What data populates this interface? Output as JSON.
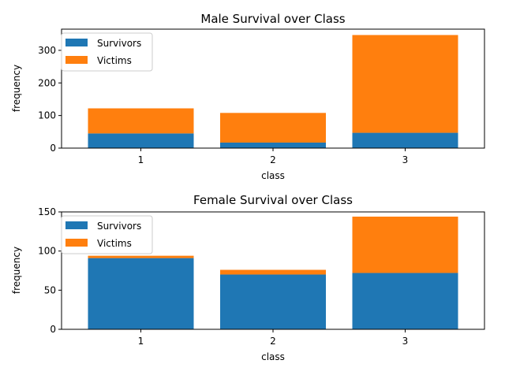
{
  "colors": {
    "survivors": "#1f77b4",
    "victims": "#ff7f0e"
  },
  "chart_data": [
    {
      "type": "bar",
      "stacked": true,
      "title": "Male Survival over Class",
      "xlabel": "class",
      "ylabel": "frequency",
      "categories": [
        "1",
        "2",
        "3"
      ],
      "ylim": [
        0,
        365
      ],
      "yticks": [
        0,
        100,
        200,
        300
      ],
      "legend": "top-left",
      "series": [
        {
          "name": "Survivors",
          "values": [
            45,
            17,
            47
          ]
        },
        {
          "name": "Victims",
          "values": [
            77,
            91,
            300
          ]
        }
      ]
    },
    {
      "type": "bar",
      "stacked": true,
      "title": "Female Survival over Class",
      "xlabel": "class",
      "ylabel": "frequency",
      "categories": [
        "1",
        "2",
        "3"
      ],
      "ylim": [
        0,
        150
      ],
      "yticks": [
        0,
        50,
        100,
        150
      ],
      "legend": "top-left",
      "series": [
        {
          "name": "Survivors",
          "values": [
            91,
            70,
            72
          ]
        },
        {
          "name": "Victims",
          "values": [
            3,
            6,
            72
          ]
        }
      ]
    }
  ]
}
